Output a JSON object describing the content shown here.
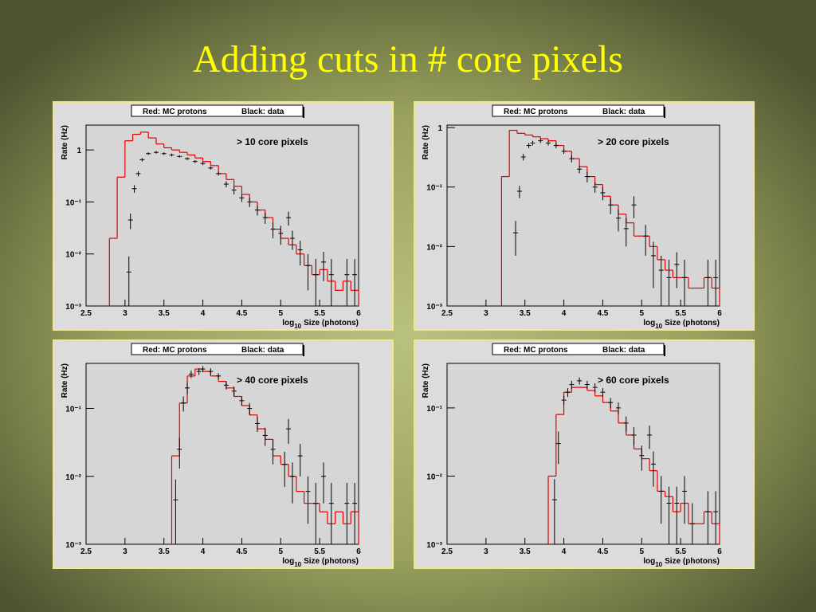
{
  "title": "Adding cuts in # core pixels",
  "chart_data": [
    {
      "type": "histogram",
      "legend": [
        "Red: MC protons",
        "Black: data"
      ],
      "annotation": "> 10 core pixels",
      "ylabel": "Rate (Hz)",
      "xlabel": {
        "base": "log",
        "sub": "10",
        "rest": "Size (photons)"
      },
      "log_y": true,
      "xlim": [
        2.5,
        6
      ],
      "ylim": [
        0.001,
        3
      ],
      "xticks": [
        2.5,
        3,
        3.5,
        4,
        4.5,
        5,
        5.5,
        6
      ],
      "yticks": [
        {
          "value": 0.001,
          "label": "10⁻³"
        },
        {
          "value": 0.01,
          "label": "10⁻²"
        },
        {
          "value": 0.1,
          "label": "10⁻¹"
        },
        1
      ],
      "series": [
        {
          "kind": "step",
          "color": "#e00000",
          "bins": [
            2.8,
            2.9,
            3.0,
            3.1,
            3.2,
            3.3,
            3.4,
            3.5,
            3.6,
            3.7,
            3.8,
            3.9,
            4.0,
            4.1,
            4.2,
            4.3,
            4.4,
            4.5,
            4.6,
            4.7,
            4.8,
            4.9,
            5.0,
            5.1,
            5.2,
            5.3,
            5.4,
            5.5,
            5.6,
            5.7,
            5.8,
            5.9,
            6.0
          ],
          "values": [
            0.02,
            0.3,
            1.5,
            2.0,
            2.2,
            1.7,
            1.3,
            1.1,
            1.0,
            0.9,
            0.8,
            0.7,
            0.6,
            0.5,
            0.35,
            0.27,
            0.2,
            0.14,
            0.1,
            0.07,
            0.05,
            0.03,
            0.02,
            0.015,
            0.01,
            0.006,
            0.004,
            0.005,
            0.003,
            0.002,
            0.003,
            0.002
          ]
        },
        {
          "kind": "points",
          "color": "#000000",
          "x": [
            3.05,
            3.07,
            3.12,
            3.17,
            3.22,
            3.3,
            3.4,
            3.5,
            3.6,
            3.7,
            3.8,
            3.9,
            4.0,
            4.1,
            4.2,
            4.3,
            4.4,
            4.5,
            4.6,
            4.7,
            4.8,
            4.9,
            5.0,
            5.1,
            5.15,
            5.25,
            5.35,
            5.45,
            5.55,
            5.65,
            5.85,
            5.95
          ],
          "values": [
            0.0045,
            0.045,
            0.18,
            0.35,
            0.65,
            0.85,
            0.9,
            0.85,
            0.8,
            0.75,
            0.68,
            0.6,
            0.55,
            0.45,
            0.35,
            0.22,
            0.17,
            0.12,
            0.1,
            0.07,
            0.05,
            0.03,
            0.025,
            0.05,
            0.02,
            0.012,
            0.006,
            0.004,
            0.007,
            0.004,
            0.004,
            0.004
          ],
          "errors": [
            0.0045,
            0.015,
            0.03,
            0.04,
            0.05,
            0.05,
            0.05,
            0.05,
            0.05,
            0.04,
            0.04,
            0.04,
            0.04,
            0.03,
            0.03,
            0.03,
            0.03,
            0.02,
            0.02,
            0.015,
            0.012,
            0.01,
            0.01,
            0.015,
            0.008,
            0.006,
            0.004,
            0.004,
            0.004,
            0.004,
            0.004,
            0.004
          ]
        }
      ]
    },
    {
      "type": "histogram",
      "legend": [
        "Red: MC protons",
        "Black: data"
      ],
      "annotation": "> 20 core pixels",
      "ylabel": "Rate (Hz)",
      "xlabel": {
        "base": "log",
        "sub": "10",
        "rest": "Size (photons)"
      },
      "log_y": true,
      "xlim": [
        2.5,
        6
      ],
      "ylim": [
        0.001,
        1.1
      ],
      "xticks": [
        2.5,
        3,
        3.5,
        4,
        4.5,
        5,
        5.5,
        6
      ],
      "yticks": [
        {
          "value": 0.001,
          "label": "10⁻³"
        },
        {
          "value": 0.01,
          "label": "10⁻²"
        },
        {
          "value": 0.1,
          "label": "10⁻¹"
        },
        1
      ],
      "series": [
        {
          "kind": "step",
          "color": "#e00000",
          "bins": [
            3.2,
            3.3,
            3.4,
            3.5,
            3.6,
            3.7,
            3.8,
            3.9,
            4.0,
            4.1,
            4.2,
            4.3,
            4.4,
            4.5,
            4.6,
            4.7,
            4.8,
            4.9,
            5.0,
            5.1,
            5.2,
            5.3,
            5.4,
            5.5,
            5.6,
            5.7,
            5.8,
            5.9,
            6.0
          ],
          "values": [
            0.15,
            0.9,
            0.8,
            0.75,
            0.7,
            0.65,
            0.6,
            0.5,
            0.4,
            0.3,
            0.22,
            0.15,
            0.11,
            0.07,
            0.05,
            0.035,
            0.025,
            0.015,
            0.015,
            0.01,
            0.006,
            0.004,
            0.003,
            0.003,
            0.002,
            0.002,
            0.003,
            0.002
          ]
        },
        {
          "kind": "points",
          "color": "#000000",
          "x": [
            3.38,
            3.43,
            3.48,
            3.55,
            3.6,
            3.7,
            3.8,
            3.9,
            4.0,
            4.1,
            4.2,
            4.3,
            4.4,
            4.5,
            4.6,
            4.7,
            4.8,
            4.9,
            5.05,
            5.15,
            5.25,
            5.35,
            5.45,
            5.55,
            5.85,
            5.95
          ],
          "values": [
            0.017,
            0.085,
            0.32,
            0.5,
            0.55,
            0.6,
            0.55,
            0.5,
            0.4,
            0.3,
            0.2,
            0.15,
            0.1,
            0.08,
            0.05,
            0.03,
            0.02,
            0.05,
            0.015,
            0.007,
            0.004,
            0.003,
            0.005,
            0.003,
            0.003,
            0.003
          ],
          "errors": [
            0.01,
            0.02,
            0.04,
            0.05,
            0.05,
            0.05,
            0.05,
            0.05,
            0.04,
            0.04,
            0.03,
            0.03,
            0.02,
            0.02,
            0.015,
            0.012,
            0.01,
            0.02,
            0.008,
            0.005,
            0.003,
            0.003,
            0.003,
            0.003,
            0.003,
            0.003
          ]
        }
      ]
    },
    {
      "type": "histogram",
      "legend": [
        "Red: MC protons",
        "Black: data"
      ],
      "annotation": "> 40 core pixels",
      "ylabel": "Rate (Hz)",
      "xlabel": {
        "base": "log",
        "sub": "10",
        "rest": "Size (photons)"
      },
      "log_y": true,
      "xlim": [
        2.5,
        6
      ],
      "ylim": [
        0.001,
        0.46
      ],
      "xticks": [
        2.5,
        3,
        3.5,
        4,
        4.5,
        5,
        5.5,
        6
      ],
      "yticks": [
        {
          "value": 0.001,
          "label": "10⁻³"
        },
        {
          "value": 0.01,
          "label": "10⁻²"
        },
        {
          "value": 0.1,
          "label": "10⁻¹"
        }
      ],
      "series": [
        {
          "kind": "step",
          "color": "#e00000",
          "bins": [
            3.6,
            3.7,
            3.8,
            3.9,
            4.0,
            4.1,
            4.2,
            4.3,
            4.4,
            4.5,
            4.6,
            4.7,
            4.8,
            4.9,
            5.0,
            5.1,
            5.2,
            5.3,
            5.4,
            5.5,
            5.6,
            5.7,
            5.8,
            5.9,
            6.0
          ],
          "values": [
            0.02,
            0.12,
            0.3,
            0.38,
            0.35,
            0.3,
            0.25,
            0.2,
            0.15,
            0.11,
            0.08,
            0.05,
            0.035,
            0.02,
            0.015,
            0.01,
            0.006,
            0.004,
            0.004,
            0.003,
            0.002,
            0.003,
            0.002,
            0.003
          ]
        },
        {
          "kind": "points",
          "color": "#000000",
          "x": [
            3.65,
            3.7,
            3.75,
            3.8,
            3.85,
            3.95,
            4.0,
            4.1,
            4.2,
            4.3,
            4.4,
            4.5,
            4.6,
            4.7,
            4.8,
            4.9,
            5.05,
            5.1,
            5.15,
            5.25,
            5.35,
            5.45,
            5.55,
            5.65,
            5.85,
            5.95
          ],
          "values": [
            0.0045,
            0.025,
            0.12,
            0.2,
            0.32,
            0.35,
            0.38,
            0.35,
            0.3,
            0.22,
            0.18,
            0.13,
            0.1,
            0.06,
            0.04,
            0.025,
            0.015,
            0.05,
            0.01,
            0.02,
            0.006,
            0.004,
            0.01,
            0.004,
            0.004,
            0.004
          ],
          "errors": [
            0.0045,
            0.012,
            0.03,
            0.04,
            0.04,
            0.04,
            0.04,
            0.04,
            0.03,
            0.03,
            0.03,
            0.02,
            0.02,
            0.015,
            0.012,
            0.01,
            0.008,
            0.02,
            0.006,
            0.01,
            0.004,
            0.004,
            0.006,
            0.004,
            0.004,
            0.004
          ]
        }
      ]
    },
    {
      "type": "histogram",
      "legend": [
        "Red: MC protons",
        "Black: data"
      ],
      "annotation": "> 60 core pixels",
      "ylabel": "Rate (Hz)",
      "xlabel": {
        "base": "log",
        "sub": "10",
        "rest": "Size (photons)"
      },
      "log_y": true,
      "xlim": [
        2.5,
        6
      ],
      "ylim": [
        0.001,
        0.45
      ],
      "xticks": [
        2.5,
        3,
        3.5,
        4,
        4.5,
        5,
        5.5,
        6
      ],
      "yticks": [
        {
          "value": 0.001,
          "label": "10⁻³"
        },
        {
          "value": 0.01,
          "label": "10⁻²"
        },
        {
          "value": 0.1,
          "label": "10⁻¹"
        }
      ],
      "series": [
        {
          "kind": "step",
          "color": "#e00000",
          "bins": [
            3.8,
            3.9,
            4.0,
            4.1,
            4.2,
            4.3,
            4.4,
            4.5,
            4.6,
            4.7,
            4.8,
            4.9,
            5.0,
            5.1,
            5.2,
            5.3,
            5.4,
            5.5,
            5.6,
            5.7,
            5.8,
            5.9,
            6.0
          ],
          "values": [
            0.01,
            0.08,
            0.17,
            0.2,
            0.2,
            0.18,
            0.15,
            0.12,
            0.09,
            0.06,
            0.04,
            0.025,
            0.018,
            0.012,
            0.006,
            0.005,
            0.003,
            0.004,
            0.002,
            0.002,
            0.003,
            0.002
          ]
        },
        {
          "kind": "points",
          "color": "#000000",
          "x": [
            3.88,
            3.93,
            4.0,
            4.05,
            4.1,
            4.2,
            4.3,
            4.4,
            4.5,
            4.6,
            4.7,
            4.8,
            4.9,
            5.0,
            5.1,
            5.15,
            5.25,
            5.35,
            5.45,
            5.55,
            5.65,
            5.85,
            5.95
          ],
          "values": [
            0.0045,
            0.03,
            0.13,
            0.17,
            0.22,
            0.25,
            0.22,
            0.2,
            0.17,
            0.12,
            0.1,
            0.06,
            0.04,
            0.02,
            0.04,
            0.015,
            0.006,
            0.004,
            0.004,
            0.006,
            0.002,
            0.003,
            0.003
          ],
          "errors": [
            0.0045,
            0.015,
            0.02,
            0.025,
            0.03,
            0.03,
            0.03,
            0.03,
            0.025,
            0.02,
            0.02,
            0.015,
            0.012,
            0.008,
            0.015,
            0.008,
            0.004,
            0.003,
            0.003,
            0.004,
            0.002,
            0.003,
            0.003
          ]
        }
      ]
    }
  ]
}
